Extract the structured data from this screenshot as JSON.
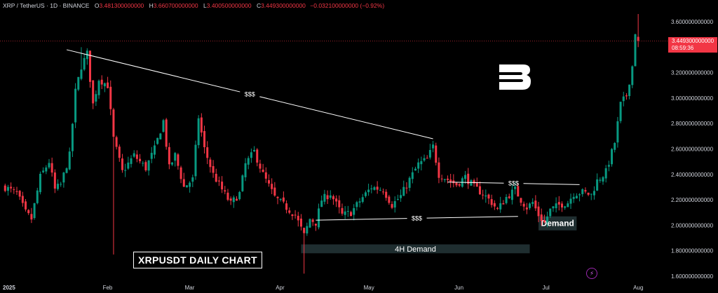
{
  "header": {
    "symbol": "XRP / TetherUS · 1D · BINANCE",
    "o_label": "O",
    "o_value": "3.481300000000",
    "h_label": "H",
    "h_value": "3.660700000000",
    "l_label": "L",
    "l_value": "3.400500000000",
    "c_label": "C",
    "c_value": "3.449300000000",
    "change": "−0.032100000000 (−0.92%)"
  },
  "price_tag": {
    "price": "3.449300000000",
    "countdown": "08:59:36"
  },
  "chart_title": "XRPUSDT DAILY CHART",
  "colors": {
    "up": "#089981",
    "down": "#f23645",
    "background": "#000000",
    "zone": "#1f2e30",
    "line": "#ffffff"
  },
  "chart_data": {
    "type": "candlestick",
    "y_axis": {
      "min": 1.6,
      "max": 3.6,
      "position": "right",
      "ticks": [
        {
          "value": 3.6,
          "label": "3.600000000000"
        },
        {
          "value": 3.4,
          "label": "3.400000000000"
        },
        {
          "value": 3.2,
          "label": "3.200000000000"
        },
        {
          "value": 3.0,
          "label": "3.000000000000"
        },
        {
          "value": 2.8,
          "label": "2.800000000000"
        },
        {
          "value": 2.6,
          "label": "2.600000000000"
        },
        {
          "value": 2.4,
          "label": "2.400000000000"
        },
        {
          "value": 2.2,
          "label": "2.200000000000"
        },
        {
          "value": 2.0,
          "label": "2.000000000000"
        },
        {
          "value": 1.8,
          "label": "1.800000000000"
        },
        {
          "value": 1.6,
          "label": "1.600000000000"
        }
      ]
    },
    "x_axis": {
      "ticks": [
        {
          "day": 0,
          "label": "2025"
        },
        {
          "day": 31,
          "label": "Feb"
        },
        {
          "day": 59,
          "label": "Mar"
        },
        {
          "day": 90,
          "label": "Apr"
        },
        {
          "day": 120,
          "label": "May"
        },
        {
          "day": 151,
          "label": "Jun"
        },
        {
          "day": 181,
          "label": "Jul"
        },
        {
          "day": 212,
          "label": "Aug"
        }
      ]
    },
    "last_price": 3.4493,
    "keypoints": [
      [
        -4,
        2.3
      ],
      [
        0,
        2.25
      ],
      [
        3,
        2.1
      ],
      [
        5,
        2.05
      ],
      [
        8,
        2.38
      ],
      [
        11,
        2.5
      ],
      [
        13,
        2.28
      ],
      [
        15,
        2.32
      ],
      [
        18,
        2.55
      ],
      [
        20,
        3.05
      ],
      [
        22,
        3.25
      ],
      [
        24,
        3.35
      ],
      [
        26,
        2.95
      ],
      [
        28,
        3.15
      ],
      [
        31,
        3.1
      ],
      [
        33,
        2.68
      ],
      [
        36,
        2.42
      ],
      [
        40,
        2.55
      ],
      [
        44,
        2.45
      ],
      [
        47,
        2.6
      ],
      [
        50,
        2.82
      ],
      [
        52,
        2.45
      ],
      [
        54,
        2.55
      ],
      [
        57,
        2.3
      ],
      [
        60,
        2.36
      ],
      [
        62,
        2.85
      ],
      [
        64,
        2.6
      ],
      [
        67,
        2.4
      ],
      [
        70,
        2.28
      ],
      [
        73,
        2.17
      ],
      [
        76,
        2.25
      ],
      [
        78,
        2.48
      ],
      [
        81,
        2.58
      ],
      [
        84,
        2.4
      ],
      [
        88,
        2.22
      ],
      [
        92,
        2.14
      ],
      [
        95,
        2.08
      ],
      [
        98,
        1.92
      ],
      [
        100,
        2.05
      ],
      [
        102,
        2.02
      ],
      [
        104,
        2.2
      ],
      [
        107,
        2.25
      ],
      [
        111,
        2.08
      ],
      [
        114,
        2.1
      ],
      [
        118,
        2.22
      ],
      [
        121,
        2.3
      ],
      [
        125,
        2.28
      ],
      [
        128,
        2.16
      ],
      [
        131,
        2.23
      ],
      [
        134,
        2.36
      ],
      [
        137,
        2.48
      ],
      [
        140,
        2.52
      ],
      [
        142,
        2.62
      ],
      [
        144,
        2.4
      ],
      [
        147,
        2.36
      ],
      [
        150,
        2.32
      ],
      [
        153,
        2.38
      ],
      [
        156,
        2.3
      ],
      [
        159,
        2.25
      ],
      [
        162,
        2.18
      ],
      [
        164,
        2.12
      ],
      [
        167,
        2.22
      ],
      [
        170,
        2.28
      ],
      [
        172,
        2.2
      ],
      [
        174,
        2.14
      ],
      [
        176,
        2.18
      ],
      [
        178,
        2.08
      ],
      [
        180,
        2.02
      ],
      [
        182,
        2.12
      ],
      [
        185,
        2.16
      ],
      [
        188,
        2.18
      ],
      [
        190,
        2.25
      ],
      [
        193,
        2.26
      ],
      [
        196,
        2.24
      ],
      [
        198,
        2.35
      ],
      [
        201,
        2.42
      ],
      [
        204,
        2.65
      ],
      [
        206,
        2.95
      ],
      [
        208,
        3.02
      ],
      [
        210,
        3.25
      ],
      [
        211,
        3.52
      ],
      [
        212,
        3.45
      ]
    ],
    "annotations": [
      {
        "type": "trendline",
        "label": "$$$",
        "from": [
          17,
          3.38
        ],
        "to": [
          142,
          2.68
        ]
      },
      {
        "type": "trendline",
        "label": "$$$",
        "from": [
          147,
          2.34
        ],
        "to": [
          192,
          2.32
        ]
      },
      {
        "type": "trendline",
        "label": "$$$",
        "from": [
          102,
          2.04
        ],
        "to": [
          171,
          2.07
        ]
      },
      {
        "type": "zone",
        "label": "4H Demand",
        "from_day": 97,
        "to_day": 175,
        "low": 1.78,
        "high": 1.85
      },
      {
        "type": "zone",
        "label": "Demand",
        "from_day": 178,
        "to_day": 191,
        "low": 1.96,
        "high": 2.07
      }
    ]
  }
}
